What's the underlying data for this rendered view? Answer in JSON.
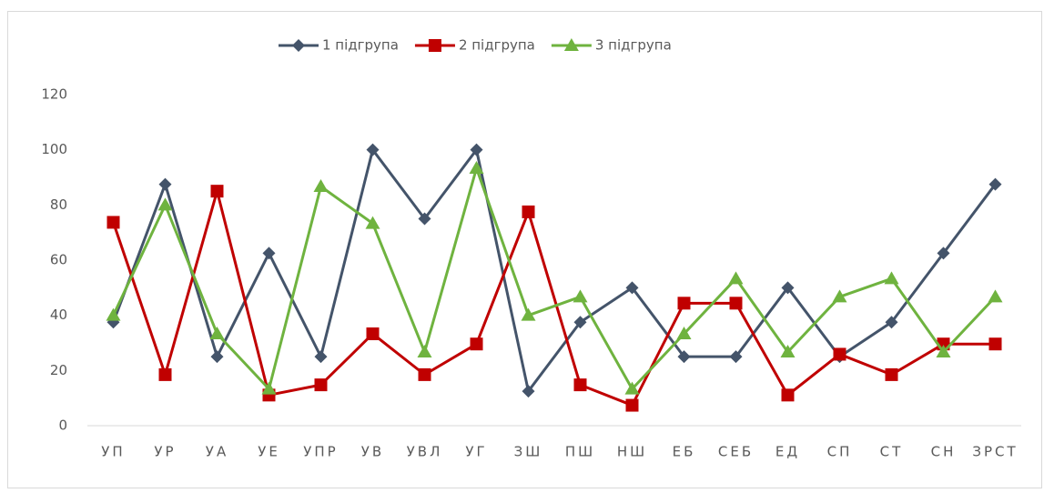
{
  "chart_data": {
    "type": "line",
    "categories": [
      "УП",
      "УР",
      "УА",
      "УЕ",
      "УПР",
      "УВ",
      "УВЛ",
      "УГ",
      "ЗШ",
      "ПШ",
      "НШ",
      "ЕБ",
      "СЕБ",
      "ЕД",
      "СП",
      "СТ",
      "СН",
      "ЗРСТ"
    ],
    "series": [
      {
        "name": "1 підгрупа",
        "color": "#44546a",
        "marker": "diamond",
        "values": [
          37.5,
          87.5,
          25,
          62.5,
          25,
          100,
          75,
          100,
          12.5,
          37.5,
          50,
          25,
          25,
          50,
          25,
          37.5,
          62.5,
          87.5
        ]
      },
      {
        "name": "2 підгрупа",
        "color": "#c00000",
        "marker": "square",
        "values": [
          73.7,
          18.5,
          85,
          11.1,
          14.8,
          33.3,
          18.5,
          29.6,
          77.5,
          14.8,
          7.4,
          44.4,
          44.4,
          11.1,
          25.9,
          18.5,
          29.6,
          29.6
        ]
      },
      {
        "name": "3 підгрупа",
        "color": "#6fb33f",
        "marker": "triangle",
        "values": [
          40,
          80,
          33.3,
          13.3,
          86.7,
          73.3,
          26.7,
          93.3,
          40,
          46.7,
          13.3,
          33.3,
          53.3,
          26.7,
          46.7,
          53.3,
          26.7,
          46.7
        ]
      }
    ],
    "ylim": [
      0,
      120
    ],
    "yticks": [
      0,
      20,
      40,
      60,
      80,
      100,
      120
    ],
    "grid": false,
    "legend": "top"
  }
}
